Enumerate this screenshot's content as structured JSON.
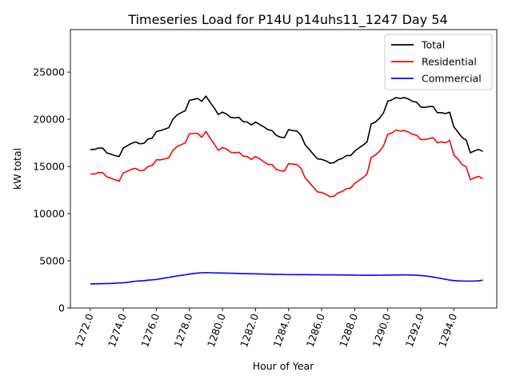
{
  "chart_data": {
    "type": "line",
    "title": "Timeseries Load for P14U p14uhs11_1247  Day 54",
    "xlabel": "Hour of Year",
    "ylabel": "kW total",
    "xlim": [
      1270.8,
      1296.6
    ],
    "ylim": [
      0,
      29500
    ],
    "x_start": 1272.0,
    "x_step": 0.25,
    "x_ticks": [
      1272,
      1274,
      1276,
      1278,
      1280,
      1282,
      1284,
      1286,
      1288,
      1290,
      1292,
      1294
    ],
    "x_tick_labels": [
      "1272.0",
      "1274.0",
      "1276.0",
      "1278.0",
      "1280.0",
      "1282.0",
      "1284.0",
      "1286.0",
      "1288.0",
      "1290.0",
      "1292.0",
      "1294.0"
    ],
    "y_ticks": [
      0,
      5000,
      10000,
      15000,
      20000,
      25000
    ],
    "y_tick_labels": [
      "0",
      "5000",
      "10000",
      "15000",
      "20000",
      "25000"
    ],
    "legend_position": "top-right",
    "series": [
      {
        "name": "Total",
        "color": "#000000",
        "values": [
          16800,
          16800,
          16950,
          16950,
          16450,
          16300,
          16150,
          16050,
          16950,
          17200,
          17450,
          17600,
          17400,
          17450,
          17900,
          18000,
          18700,
          18800,
          18950,
          19100,
          20000,
          20450,
          20700,
          20900,
          22000,
          22100,
          22200,
          21900,
          22450,
          21800,
          21200,
          20500,
          20750,
          20550,
          20200,
          20150,
          20200,
          19750,
          19700,
          19400,
          19700,
          19450,
          19200,
          18900,
          18800,
          18300,
          18100,
          18050,
          18900,
          18800,
          18750,
          18300,
          17300,
          16800,
          16300,
          15800,
          15750,
          15600,
          15350,
          15400,
          15700,
          15850,
          16150,
          16150,
          16600,
          16950,
          17250,
          17600,
          19500,
          19700,
          20100,
          20700,
          21900,
          22050,
          22300,
          22200,
          22300,
          22150,
          21900,
          21800,
          21300,
          21250,
          21350,
          21350,
          20700,
          20700,
          20600,
          20750,
          19200,
          18650,
          18050,
          17800,
          16450,
          16650,
          16800,
          16600
        ]
      },
      {
        "name": "Residential",
        "color": "#ff0000",
        "values": [
          14200,
          14200,
          14350,
          14350,
          13900,
          13750,
          13600,
          13450,
          14300,
          14500,
          14700,
          14800,
          14550,
          14600,
          15000,
          15100,
          15700,
          15700,
          15800,
          15900,
          16700,
          17100,
          17300,
          17500,
          18450,
          18500,
          18500,
          18100,
          18700,
          18000,
          17400,
          16700,
          17000,
          16850,
          16500,
          16450,
          16500,
          16100,
          16050,
          15750,
          16050,
          15800,
          15500,
          15200,
          15200,
          14700,
          14550,
          14500,
          15300,
          15250,
          15200,
          14800,
          13800,
          13300,
          12800,
          12300,
          12250,
          12050,
          11800,
          11850,
          12200,
          12350,
          12650,
          12700,
          13200,
          13500,
          13800,
          14200,
          15950,
          16200,
          16600,
          17200,
          18400,
          18550,
          18850,
          18750,
          18800,
          18650,
          18400,
          18300,
          17850,
          17850,
          17950,
          18050,
          17500,
          17600,
          17500,
          17750,
          16200,
          15800,
          15200,
          14950,
          13600,
          13800,
          13950,
          13700
        ]
      },
      {
        "name": "Commercial",
        "color": "#0000ff",
        "values": [
          2550,
          2560,
          2570,
          2580,
          2590,
          2600,
          2620,
          2650,
          2680,
          2720,
          2780,
          2840,
          2870,
          2900,
          2950,
          2980,
          3020,
          3100,
          3170,
          3240,
          3320,
          3400,
          3450,
          3520,
          3600,
          3650,
          3700,
          3730,
          3750,
          3740,
          3720,
          3710,
          3700,
          3690,
          3680,
          3670,
          3660,
          3650,
          3640,
          3630,
          3620,
          3610,
          3600,
          3590,
          3580,
          3570,
          3560,
          3550,
          3540,
          3540,
          3535,
          3530,
          3530,
          3525,
          3520,
          3520,
          3515,
          3510,
          3510,
          3510,
          3505,
          3500,
          3495,
          3490,
          3480,
          3475,
          3470,
          3470,
          3470,
          3470,
          3475,
          3480,
          3485,
          3490,
          3500,
          3505,
          3510,
          3505,
          3490,
          3470,
          3440,
          3400,
          3350,
          3280,
          3200,
          3120,
          3040,
          2960,
          2910,
          2880,
          2860,
          2850,
          2850,
          2860,
          2880,
          2950
        ]
      }
    ]
  }
}
